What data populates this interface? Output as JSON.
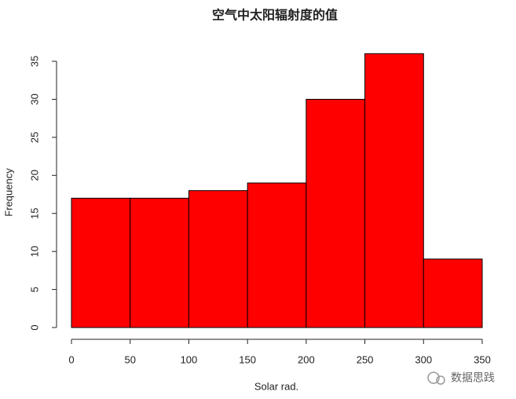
{
  "chart_data": {
    "type": "histogram",
    "title": "空气中太阳辐射度的值",
    "x_label": "Solar rad.",
    "y_label": "Frequency",
    "bins": [
      0,
      50,
      100,
      150,
      200,
      250,
      300,
      350
    ],
    "values": [
      17,
      17,
      18,
      19,
      30,
      36,
      9
    ],
    "color": "#ff0000",
    "edge_color": "#000000",
    "xlim": [
      0,
      350
    ],
    "xticks": [
      0,
      50,
      100,
      150,
      200,
      250,
      300,
      350
    ],
    "ylim": [
      0,
      35
    ],
    "yticks": [
      0,
      5,
      10,
      15,
      20,
      25,
      30,
      35
    ],
    "grid": false
  },
  "watermark": "数据思践"
}
